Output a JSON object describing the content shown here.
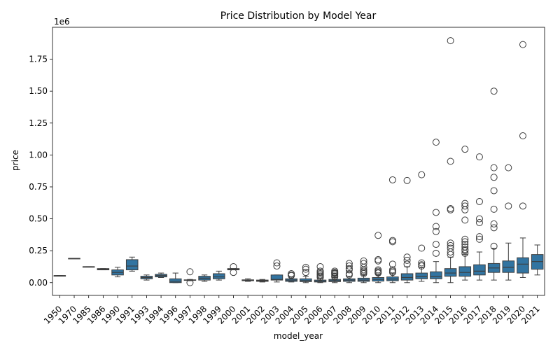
{
  "chart_data": {
    "type": "box",
    "title": "Price Distribution by Model Year",
    "xlabel": "model_year",
    "ylabel": "price",
    "y_multiplier_label": "1e6",
    "ylim": [
      -0.1,
      2.0
    ],
    "y_ticks": [
      0.0,
      0.25,
      0.5,
      0.75,
      1.0,
      1.25,
      1.5,
      1.75
    ],
    "y_tick_labels": [
      "0.00",
      "0.25",
      "0.50",
      "0.75",
      "1.00",
      "1.25",
      "1.50",
      "1.75"
    ],
    "units_note": "price values in millions (axis multiplier 1e6)",
    "box_color": "#3274a1",
    "grid": false,
    "legend": "none",
    "categories": [
      "1950",
      "1970",
      "1985",
      "1986",
      "1990",
      "1991",
      "1993",
      "1994",
      "1996",
      "1997",
      "1998",
      "1999",
      "2000",
      "2001",
      "2002",
      "2003",
      "2004",
      "2005",
      "2006",
      "2007",
      "2008",
      "2009",
      "2010",
      "2011",
      "2012",
      "2013",
      "2014",
      "2015",
      "2016",
      "2017",
      "2018",
      "2019",
      "2020",
      "2021"
    ],
    "boxes": [
      {
        "year": "1950",
        "wl": 0.055,
        "q1": 0.055,
        "med": 0.055,
        "q3": 0.055,
        "wh": 0.055,
        "outliers": []
      },
      {
        "year": "1970",
        "wl": 0.19,
        "q1": 0.19,
        "med": 0.19,
        "q3": 0.19,
        "wh": 0.19,
        "outliers": []
      },
      {
        "year": "1985",
        "wl": 0.125,
        "q1": 0.125,
        "med": 0.125,
        "q3": 0.125,
        "wh": 0.125,
        "outliers": []
      },
      {
        "year": "1986",
        "wl": 0.1,
        "q1": 0.1,
        "med": 0.105,
        "q3": 0.11,
        "wh": 0.11,
        "outliers": []
      },
      {
        "year": "1990",
        "wl": 0.045,
        "q1": 0.06,
        "med": 0.08,
        "q3": 0.1,
        "wh": 0.12,
        "outliers": []
      },
      {
        "year": "1991",
        "wl": 0.09,
        "q1": 0.1,
        "med": 0.13,
        "q3": 0.18,
        "wh": 0.2,
        "outliers": []
      },
      {
        "year": "1993",
        "wl": 0.02,
        "q1": 0.03,
        "med": 0.04,
        "q3": 0.05,
        "wh": 0.06,
        "outliers": []
      },
      {
        "year": "1994",
        "wl": 0.04,
        "q1": 0.045,
        "med": 0.055,
        "q3": 0.065,
        "wh": 0.075,
        "outliers": []
      },
      {
        "year": "1996",
        "wl": 0.0,
        "q1": 0.0,
        "med": 0.01,
        "q3": 0.03,
        "wh": 0.075,
        "outliers": []
      },
      {
        "year": "1997",
        "wl": 0.015,
        "q1": 0.018,
        "med": 0.02,
        "q3": 0.022,
        "wh": 0.025,
        "outliers": [
          0.085,
          0.0
        ]
      },
      {
        "year": "1998",
        "wl": 0.01,
        "q1": 0.02,
        "med": 0.035,
        "q3": 0.05,
        "wh": 0.06,
        "outliers": []
      },
      {
        "year": "1999",
        "wl": 0.02,
        "q1": 0.03,
        "med": 0.045,
        "q3": 0.07,
        "wh": 0.09,
        "outliers": []
      },
      {
        "year": "2000",
        "wl": 0.1,
        "q1": 0.1,
        "med": 0.105,
        "q3": 0.11,
        "wh": 0.11,
        "outliers": [
          0.125,
          0.08
        ]
      },
      {
        "year": "2001",
        "wl": 0.01,
        "q1": 0.015,
        "med": 0.02,
        "q3": 0.022,
        "wh": 0.03,
        "outliers": []
      },
      {
        "year": "2002",
        "wl": 0.005,
        "q1": 0.01,
        "med": 0.015,
        "q3": 0.02,
        "wh": 0.025,
        "outliers": []
      },
      {
        "year": "2003",
        "wl": 0.005,
        "q1": 0.02,
        "med": 0.025,
        "q3": 0.06,
        "wh": 0.06,
        "outliers": [
          0.155,
          0.13
        ]
      },
      {
        "year": "2004",
        "wl": 0.005,
        "q1": 0.01,
        "med": 0.02,
        "q3": 0.03,
        "wh": 0.045,
        "outliers": [
          0.07,
          0.06,
          0.055
        ]
      },
      {
        "year": "2005",
        "wl": 0.0,
        "q1": 0.008,
        "med": 0.015,
        "q3": 0.03,
        "wh": 0.05,
        "outliers": [
          0.12,
          0.105,
          0.08
        ]
      },
      {
        "year": "2006",
        "wl": 0.0,
        "q1": 0.005,
        "med": 0.012,
        "q3": 0.02,
        "wh": 0.035,
        "outliers": [
          0.125,
          0.09,
          0.08,
          0.07,
          0.06,
          0.05,
          0.04
        ]
      },
      {
        "year": "2007",
        "wl": 0.0,
        "q1": 0.008,
        "med": 0.015,
        "q3": 0.025,
        "wh": 0.04,
        "outliers": [
          0.09,
          0.08,
          0.075,
          0.07,
          0.06,
          0.05,
          0.045
        ]
      },
      {
        "year": "2008",
        "wl": 0.0,
        "q1": 0.01,
        "med": 0.02,
        "q3": 0.03,
        "wh": 0.05,
        "outliers": [
          0.15,
          0.13,
          0.11,
          0.1,
          0.07,
          0.06
        ]
      },
      {
        "year": "2009",
        "wl": 0.0,
        "q1": 0.01,
        "med": 0.02,
        "q3": 0.035,
        "wh": 0.06,
        "outliers": [
          0.17,
          0.15,
          0.12,
          0.1,
          0.09,
          0.08,
          0.07
        ]
      },
      {
        "year": "2010",
        "wl": 0.0,
        "q1": 0.012,
        "med": 0.025,
        "q3": 0.04,
        "wh": 0.065,
        "outliers": [
          0.37,
          0.18,
          0.17,
          0.1,
          0.09,
          0.08,
          0.075
        ]
      },
      {
        "year": "2011",
        "wl": 0.0,
        "q1": 0.015,
        "med": 0.028,
        "q3": 0.045,
        "wh": 0.07,
        "outliers": [
          0.805,
          0.33,
          0.32,
          0.145,
          0.1,
          0.09,
          0.08
        ]
      },
      {
        "year": "2012",
        "wl": 0.0,
        "q1": 0.02,
        "med": 0.04,
        "q3": 0.07,
        "wh": 0.125,
        "outliers": [
          0.8,
          0.2,
          0.175,
          0.145
        ]
      },
      {
        "year": "2013",
        "wl": 0.01,
        "q1": 0.03,
        "med": 0.05,
        "q3": 0.075,
        "wh": 0.12,
        "outliers": [
          0.845,
          0.27,
          0.155,
          0.14,
          0.13
        ]
      },
      {
        "year": "2014",
        "wl": 0.0,
        "q1": 0.03,
        "med": 0.05,
        "q3": 0.085,
        "wh": 0.165,
        "outliers": [
          1.1,
          0.55,
          0.44,
          0.4,
          0.3,
          0.23
        ]
      },
      {
        "year": "2015",
        "wl": 0.0,
        "q1": 0.05,
        "med": 0.075,
        "q3": 0.11,
        "wh": 0.2,
        "outliers": [
          1.895,
          0.95,
          0.58,
          0.57,
          0.31,
          0.29,
          0.27,
          0.24,
          0.22
        ]
      },
      {
        "year": "2016",
        "wl": 0.02,
        "q1": 0.05,
        "med": 0.08,
        "q3": 0.125,
        "wh": 0.22,
        "outliers": [
          1.045,
          0.62,
          0.6,
          0.57,
          0.49,
          0.34,
          0.32,
          0.3,
          0.28,
          0.26,
          0.25,
          0.23
        ]
      },
      {
        "year": "2017",
        "wl": 0.02,
        "q1": 0.06,
        "med": 0.09,
        "q3": 0.14,
        "wh": 0.24,
        "outliers": [
          0.985,
          0.635,
          0.5,
          0.47,
          0.36,
          0.34
        ]
      },
      {
        "year": "2018",
        "wl": 0.02,
        "q1": 0.08,
        "med": 0.115,
        "q3": 0.15,
        "wh": 0.27,
        "outliers": [
          1.5,
          0.9,
          0.825,
          0.72,
          0.575,
          0.46,
          0.43,
          0.285
        ]
      },
      {
        "year": "2019",
        "wl": 0.02,
        "q1": 0.08,
        "med": 0.12,
        "q3": 0.17,
        "wh": 0.31,
        "outliers": [
          0.9,
          0.6
        ]
      },
      {
        "year": "2020",
        "wl": 0.04,
        "q1": 0.075,
        "med": 0.145,
        "q3": 0.195,
        "wh": 0.35,
        "outliers": [
          1.865,
          1.15,
          0.6
        ]
      },
      {
        "year": "2021",
        "wl": 0.06,
        "q1": 0.105,
        "med": 0.165,
        "q3": 0.22,
        "wh": 0.295,
        "outliers": []
      }
    ]
  }
}
